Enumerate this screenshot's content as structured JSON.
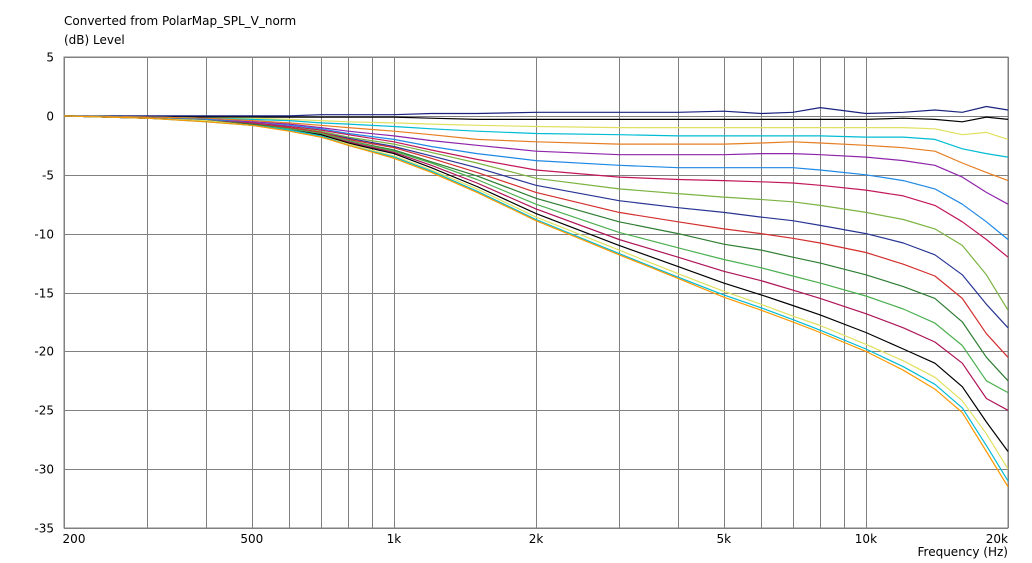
{
  "chart_data": {
    "type": "line",
    "title": "Converted from PolarMap_SPL_V_norm",
    "ylabel": "(dB)  Level",
    "xlabel": "Frequency  (Hz)",
    "xscale": "log",
    "xlim": [
      200,
      20000
    ],
    "ylim": [
      -35,
      5
    ],
    "grid": true,
    "legend": "none",
    "x_tick_labels": [
      {
        "value": 200,
        "label": "200"
      },
      {
        "value": 500,
        "label": "500"
      },
      {
        "value": 1000,
        "label": "1k"
      },
      {
        "value": 2000,
        "label": "2k"
      },
      {
        "value": 5000,
        "label": "5k"
      },
      {
        "value": 10000,
        "label": "10k"
      },
      {
        "value": 20000,
        "label": "20k"
      }
    ],
    "x_minor_grid": [
      300,
      400,
      600,
      700,
      800,
      900,
      3000,
      4000,
      6000,
      7000,
      8000,
      9000
    ],
    "y_ticks": [
      5,
      0,
      -5,
      -10,
      -15,
      -20,
      -25,
      -30,
      -35
    ],
    "x": [
      200,
      300,
      400,
      500,
      600,
      700,
      800,
      1000,
      1200,
      1500,
      2000,
      3000,
      4000,
      5000,
      6000,
      7000,
      8000,
      10000,
      12000,
      14000,
      16000,
      18000,
      20000
    ],
    "series": [
      {
        "color": "#1a237e",
        "values": [
          0,
          0,
          0,
          0,
          0,
          0.1,
          0.1,
          0.1,
          0.2,
          0.2,
          0.3,
          0.3,
          0.3,
          0.4,
          0.2,
          0.3,
          0.7,
          0.2,
          0.3,
          0.5,
          0.3,
          0.8,
          0.5
        ]
      },
      {
        "color": "#000000",
        "values": [
          0,
          -0.1,
          -0.1,
          -0.1,
          -0.1,
          -0.1,
          -0.1,
          -0.1,
          -0.2,
          -0.3,
          -0.3,
          -0.3,
          -0.3,
          -0.3,
          -0.3,
          -0.3,
          -0.3,
          -0.3,
          -0.2,
          -0.3,
          -0.5,
          -0.1,
          -0.3
        ]
      },
      {
        "color": "#e0e060",
        "values": [
          0,
          -0.1,
          -0.2,
          -0.2,
          -0.3,
          -0.4,
          -0.5,
          -0.6,
          -0.7,
          -0.8,
          -0.9,
          -1.0,
          -1.0,
          -1.0,
          -1.0,
          -1.0,
          -1.0,
          -1.0,
          -1.0,
          -1.1,
          -1.6,
          -1.4,
          -2.0
        ]
      },
      {
        "color": "#00bcd4",
        "values": [
          0,
          -0.1,
          -0.2,
          -0.3,
          -0.4,
          -0.6,
          -0.7,
          -0.9,
          -1.1,
          -1.3,
          -1.5,
          -1.6,
          -1.7,
          -1.7,
          -1.7,
          -1.7,
          -1.7,
          -1.8,
          -1.8,
          -2.0,
          -2.8,
          -3.2,
          -3.5
        ]
      },
      {
        "color": "#e67e22",
        "values": [
          0,
          -0.1,
          -0.2,
          -0.4,
          -0.6,
          -0.8,
          -1.0,
          -1.3,
          -1.6,
          -2.0,
          -2.2,
          -2.4,
          -2.4,
          -2.4,
          -2.3,
          -2.2,
          -2.3,
          -2.5,
          -2.7,
          -3.0,
          -4.0,
          -4.8,
          -5.5
        ]
      },
      {
        "color": "#8e24aa",
        "values": [
          0,
          -0.2,
          -0.3,
          -0.5,
          -0.7,
          -1.0,
          -1.3,
          -1.7,
          -2.1,
          -2.5,
          -3.0,
          -3.3,
          -3.3,
          -3.3,
          -3.2,
          -3.2,
          -3.3,
          -3.5,
          -3.8,
          -4.2,
          -5.2,
          -6.5,
          -7.5
        ]
      },
      {
        "color": "#1e88e5",
        "values": [
          0,
          -0.2,
          -0.3,
          -0.6,
          -0.8,
          -1.1,
          -1.5,
          -2.0,
          -2.6,
          -3.2,
          -3.8,
          -4.2,
          -4.4,
          -4.4,
          -4.4,
          -4.4,
          -4.6,
          -5.0,
          -5.5,
          -6.2,
          -7.5,
          -9.0,
          -10.5
        ]
      },
      {
        "color": "#c2185b",
        "values": [
          0,
          -0.2,
          -0.4,
          -0.6,
          -0.9,
          -1.2,
          -1.6,
          -2.2,
          -2.9,
          -3.7,
          -4.6,
          -5.2,
          -5.4,
          -5.5,
          -5.6,
          -5.7,
          -5.9,
          -6.3,
          -6.8,
          -7.6,
          -9.0,
          -10.5,
          -12.0
        ]
      },
      {
        "color": "#7cb342",
        "values": [
          0,
          -0.2,
          -0.4,
          -0.7,
          -1.0,
          -1.3,
          -1.8,
          -2.4,
          -3.1,
          -4.0,
          -5.3,
          -6.2,
          -6.6,
          -6.9,
          -7.1,
          -7.3,
          -7.6,
          -8.2,
          -8.8,
          -9.6,
          -11.0,
          -13.5,
          -16.5
        ]
      },
      {
        "color": "#283593",
        "values": [
          0,
          -0.2,
          -0.4,
          -0.7,
          -1.0,
          -1.4,
          -1.9,
          -2.6,
          -3.4,
          -4.4,
          -5.9,
          -7.2,
          -7.8,
          -8.2,
          -8.6,
          -8.9,
          -9.3,
          -10.0,
          -10.8,
          -11.8,
          -13.5,
          -16.0,
          -18.0
        ]
      },
      {
        "color": "#d32f2f",
        "values": [
          0,
          -0.2,
          -0.4,
          -0.7,
          -1.0,
          -1.4,
          -2.0,
          -2.7,
          -3.6,
          -4.8,
          -6.5,
          -8.2,
          -9.0,
          -9.6,
          -10.0,
          -10.4,
          -10.8,
          -11.6,
          -12.6,
          -13.6,
          -15.5,
          -18.5,
          -20.5
        ]
      },
      {
        "color": "#2e7d32",
        "values": [
          0,
          -0.2,
          -0.4,
          -0.7,
          -1.1,
          -1.5,
          -2.1,
          -2.9,
          -3.9,
          -5.1,
          -7.0,
          -9.0,
          -10.0,
          -10.9,
          -11.4,
          -12.0,
          -12.5,
          -13.5,
          -14.5,
          -15.5,
          -17.5,
          -20.5,
          -22.5
        ]
      },
      {
        "color": "#4caf50",
        "values": [
          0,
          -0.2,
          -0.4,
          -0.8,
          -1.1,
          -1.5,
          -2.1,
          -3.0,
          -4.0,
          -5.4,
          -7.5,
          -9.9,
          -11.2,
          -12.2,
          -12.9,
          -13.6,
          -14.2,
          -15.3,
          -16.4,
          -17.6,
          -19.5,
          -22.5,
          -23.5
        ]
      },
      {
        "color": "#ad1457",
        "values": [
          0,
          -0.2,
          -0.4,
          -0.8,
          -1.2,
          -1.6,
          -2.2,
          -3.1,
          -4.2,
          -5.7,
          -7.9,
          -10.5,
          -12.0,
          -13.2,
          -14.0,
          -14.8,
          -15.5,
          -16.8,
          -18.0,
          -19.2,
          -21.0,
          -24.0,
          -25.0
        ]
      },
      {
        "color": "#000000",
        "values": [
          0,
          -0.2,
          -0.4,
          -0.8,
          -1.2,
          -1.6,
          -2.3,
          -3.2,
          -4.4,
          -6.0,
          -8.3,
          -11.0,
          -12.8,
          -14.2,
          -15.2,
          -16.1,
          -16.9,
          -18.4,
          -19.8,
          -21.0,
          -23.0,
          -26.0,
          -28.5
        ]
      },
      {
        "color": "#e0e060",
        "values": [
          0,
          -0.2,
          -0.4,
          -0.8,
          -1.2,
          -1.7,
          -2.4,
          -3.4,
          -4.6,
          -6.2,
          -8.6,
          -11.4,
          -13.4,
          -14.9,
          -16.0,
          -17.0,
          -17.8,
          -19.4,
          -20.8,
          -22.2,
          -24.2,
          -27.0,
          -30.0
        ]
      },
      {
        "color": "#00bcd4",
        "values": [
          0,
          -0.2,
          -0.5,
          -0.8,
          -1.2,
          -1.7,
          -2.5,
          -3.5,
          -4.7,
          -6.4,
          -8.8,
          -11.7,
          -13.7,
          -15.2,
          -16.3,
          -17.3,
          -18.2,
          -19.8,
          -21.3,
          -22.8,
          -24.8,
          -28.0,
          -31.0
        ]
      },
      {
        "color": "#ff9800",
        "values": [
          0,
          -0.2,
          -0.5,
          -0.8,
          -1.3,
          -1.8,
          -2.5,
          -3.6,
          -4.8,
          -6.5,
          -8.9,
          -11.8,
          -13.8,
          -15.4,
          -16.5,
          -17.5,
          -18.4,
          -20.0,
          -21.6,
          -23.2,
          -25.2,
          -28.5,
          -31.5
        ]
      }
    ]
  }
}
